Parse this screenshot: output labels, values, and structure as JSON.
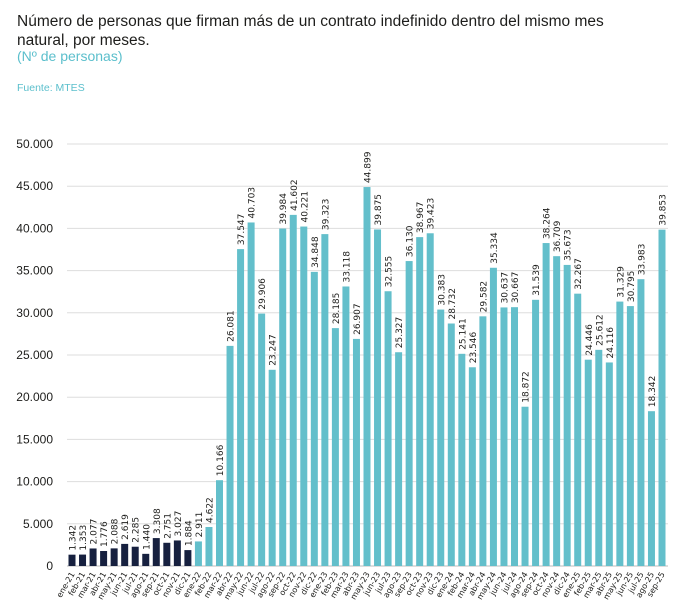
{
  "chart_data": {
    "type": "bar",
    "title": "Número de personas que firman más de un contrato indefinido dentro del mismo mes natural, por meses.",
    "subtitle": "(Nº de personas)",
    "source": "Fuente: MTES",
    "xlabel": "",
    "ylabel": "",
    "ylim": [
      0,
      50000
    ],
    "yticks": [
      "0",
      "5.000",
      "10.000",
      "15.000",
      "20.000",
      "25.000",
      "30.000",
      "35.000",
      "40.000",
      "45.000",
      "50.000"
    ],
    "grid": true,
    "colors": {
      "2021": "#16203f",
      "rest": "#63bfcb"
    },
    "categories": [
      "ene-21",
      "feb-21",
      "mar-21",
      "abr-21",
      "may-21",
      "jun-21",
      "jul-21",
      "ago-21",
      "sep-21",
      "oct-21",
      "nov-21",
      "dic-21",
      "ene-22",
      "feb-22",
      "mar-22",
      "abr-22",
      "may-22",
      "jun-22",
      "jul-22",
      "ago-22",
      "sep-22",
      "oct-22",
      "nov-22",
      "dic-22",
      "ene-23",
      "feb-23",
      "mar-23",
      "abr-23",
      "may-23",
      "jun-23",
      "jul-23",
      "ago-23",
      "sep-23",
      "oct-23",
      "nov-23",
      "dic-23",
      "ene-24",
      "feb-24",
      "mar-24",
      "abr-24",
      "may-24",
      "jun-24",
      "jul-24",
      "ago-24",
      "sep-24",
      "oct-24",
      "nov-24",
      "dic-24",
      "ene-25",
      "feb-25",
      "mar-25",
      "abr-25",
      "may-25",
      "jun-25",
      "jul-25",
      "ago-25",
      "sep-25"
    ],
    "values": [
      1342,
      1353,
      2077,
      1776,
      2088,
      2619,
      2285,
      1440,
      3308,
      2751,
      3027,
      1884,
      2911,
      4622,
      10166,
      26081,
      37547,
      40703,
      29906,
      23247,
      39984,
      41602,
      40221,
      34848,
      39323,
      28185,
      33118,
      26907,
      44899,
      39875,
      32555,
      25327,
      36130,
      38967,
      39423,
      30383,
      28732,
      25141,
      23546,
      29582,
      35334,
      30637,
      30667,
      18872,
      31539,
      38264,
      36709,
      35673,
      32267,
      24446,
      25612,
      24116,
      31329,
      30795,
      33983,
      18342,
      39853
    ],
    "labels": [
      "1.342",
      "1.353",
      "2.077",
      "1.776",
      "2.088",
      "2.619",
      "2.285",
      "1.440",
      "3.308",
      "2.751",
      "3.027",
      "1.884",
      "2.911",
      "4.622",
      "10.166",
      "26.081",
      "37.547",
      "40.703",
      "29.906",
      "23.247",
      "39.984",
      "41.602",
      "40.221",
      "34.848",
      "39.323",
      "28.185",
      "33.118",
      "26.907",
      "44.899",
      "39.875",
      "32.555",
      "25.327",
      "36.130",
      "38.967",
      "39.423",
      "30.383",
      "28.732",
      "25.141",
      "23.546",
      "29.582",
      "35.334",
      "30.637",
      "30.667",
      "18.872",
      "31.539",
      "38.264",
      "36.709",
      "35.673",
      "32.267",
      "24.446",
      "25.612",
      "24.116",
      "31.329",
      "30.795",
      "33.983",
      "18.342",
      "39.853"
    ]
  }
}
